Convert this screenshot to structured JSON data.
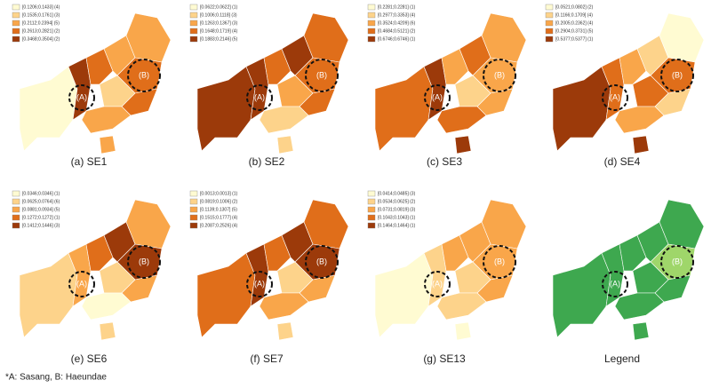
{
  "panels": [
    {
      "caption": "(a)  SE1",
      "legend": [
        "[0.1206;0.1433] (4)",
        "[0.1535;0.1761] (3)",
        "[0.2112;0.2394] (5)",
        "[0.2613;0.2821] (2)",
        "[0.3468;0.3504] (2)"
      ]
    },
    {
      "caption": "(b)  SE2",
      "legend": [
        "[0.0622;0.0622] (1)",
        "[0.1006;0.1118] (3)",
        "[0.1263;0.1367] (3)",
        "[0.1648;0.1719] (4)",
        "[0.1883;0.2146] (5)"
      ]
    },
    {
      "caption": "(c)  SE3",
      "legend": [
        "[0.2281;0.2281] (1)",
        "[0.2977;0.3353] (4)",
        "[0.3524;0.4209] (6)",
        "[0.4684;0.5121] (2)",
        "[0.6746;0.6746] (1)"
      ]
    },
    {
      "caption": "(d)  SE4",
      "legend": [
        "[0.0521;0.0802] (2)",
        "[0.1166;0.1709] (4)",
        "[0.2005;0.2362] (4)",
        "[0.2904;0.3731] (5)",
        "[0.5377;0.5377] (1)"
      ]
    },
    {
      "caption": "(e)  SE6",
      "legend": [
        "[0.0346;0.0346] (1)",
        "[0.0625;0.0764] (6)",
        "[0.0881;0.0934] (5)",
        "[0.1272;0.1272] (1)",
        "[0.1412;0.1446] (3)"
      ]
    },
    {
      "caption": "(f)  SE7",
      "legend": [
        "[0.0013;0.0013] (1)",
        "[0.0819;0.1006] (2)",
        "[0.1139;0.1307] (5)",
        "[0.1515;0.1777] (4)",
        "[0.2087;0.2526] (4)"
      ]
    },
    {
      "caption": "(g)  SE13",
      "legend": [
        "[0.0414;0.0485] (3)",
        "[0.0534;0.0625] (2)",
        "[0.0731;0.0819] (3)",
        "[0.1043;0.1043] (1)",
        "[0.1464;0.1464] (1)"
      ]
    },
    {
      "caption": "Legend",
      "legend": []
    }
  ],
  "circle_labels": [
    "(A)",
    "(B)"
  ],
  "palette": [
    "#fffbd2",
    "#fdd38b",
    "#f9a64a",
    "#e06e1a",
    "#9c3a0a"
  ],
  "footnote": "*A: Sasang,  B: Haeundae"
}
